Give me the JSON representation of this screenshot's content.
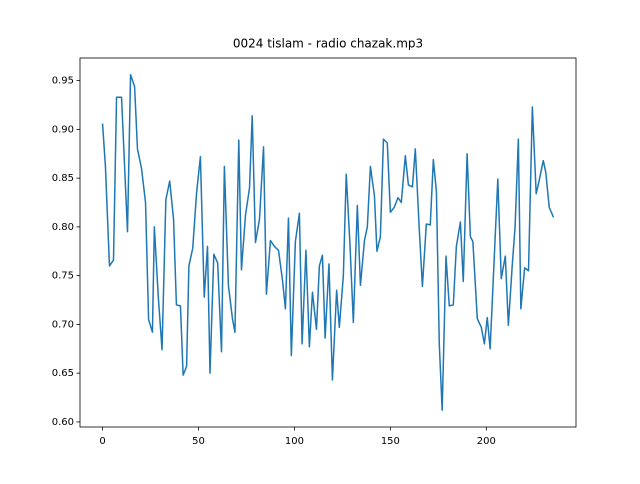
{
  "chart_data": {
    "type": "line",
    "title": "0024 tislam - radio chazak.mp3",
    "x": [
      0,
      1.5,
      3.6,
      5.7,
      7.3,
      9.9,
      13,
      14.6,
      16.7,
      18.2,
      20.3,
      22.4,
      24,
      26,
      27,
      29,
      31,
      33,
      35,
      37,
      38.5,
      40.6,
      42,
      43.8,
      45,
      47,
      49,
      51,
      53,
      54.7,
      56,
      58,
      60,
      62,
      63.5,
      65.6,
      67.7,
      69,
      71,
      72.4,
      74.5,
      76.6,
      78,
      79.7,
      81.8,
      83.9,
      85.4,
      87.5,
      89.6,
      91.7,
      93.8,
      95.3,
      96.9,
      98.4,
      100.5,
      102.6,
      104,
      106,
      107.8,
      109.4,
      111.5,
      113,
      114.6,
      116,
      118,
      119.8,
      122,
      123.4,
      125.5,
      127,
      129,
      130.7,
      132.8,
      134.4,
      136.5,
      138,
      139.6,
      141.7,
      143,
      144.8,
      146.4,
      148.4,
      150,
      152,
      154,
      155.7,
      157.8,
      159.4,
      161.5,
      163,
      165,
      166.7,
      168.75,
      170.8,
      172.4,
      174,
      175.5,
      177,
      179,
      180.7,
      182.8,
      184.4,
      186.5,
      188,
      190,
      191.7,
      193,
      195.3,
      197.4,
      199,
      200.5,
      202,
      204,
      206,
      207.8,
      209.9,
      211.5,
      213.5,
      215,
      216.7,
      218,
      220,
      222,
      224,
      226,
      227.6,
      229.7,
      231,
      232.8,
      235
    ],
    "series": [
      {
        "color": "#1f77b4",
        "values": [
          0.906,
          0.862,
          0.76,
          0.766,
          0.933,
          0.933,
          0.795,
          0.956,
          0.944,
          0.88,
          0.86,
          0.825,
          0.705,
          0.692,
          0.8,
          0.73,
          0.674,
          0.828,
          0.847,
          0.808,
          0.72,
          0.719,
          0.648,
          0.657,
          0.76,
          0.778,
          0.835,
          0.872,
          0.728,
          0.78,
          0.65,
          0.772,
          0.763,
          0.672,
          0.862,
          0.74,
          0.706,
          0.692,
          0.889,
          0.756,
          0.812,
          0.84,
          0.914,
          0.784,
          0.808,
          0.882,
          0.731,
          0.786,
          0.78,
          0.776,
          0.745,
          0.716,
          0.809,
          0.668,
          0.785,
          0.814,
          0.68,
          0.776,
          0.677,
          0.733,
          0.695,
          0.76,
          0.771,
          0.686,
          0.762,
          0.643,
          0.735,
          0.697,
          0.75,
          0.854,
          0.78,
          0.702,
          0.822,
          0.74,
          0.786,
          0.8,
          0.862,
          0.832,
          0.775,
          0.79,
          0.89,
          0.886,
          0.815,
          0.82,
          0.83,
          0.825,
          0.873,
          0.843,
          0.841,
          0.88,
          0.8,
          0.739,
          0.803,
          0.802,
          0.869,
          0.836,
          0.68,
          0.612,
          0.77,
          0.719,
          0.72,
          0.78,
          0.805,
          0.744,
          0.875,
          0.79,
          0.785,
          0.706,
          0.697,
          0.68,
          0.707,
          0.675,
          0.762,
          0.849,
          0.747,
          0.77,
          0.699,
          0.76,
          0.8,
          0.89,
          0.716,
          0.758,
          0.755,
          0.923,
          0.834,
          0.848,
          0.868,
          0.856,
          0.82,
          0.81
        ]
      }
    ],
    "xlim": [
      -11.75,
      246.75
    ],
    "ylim": [
      0.5948,
      0.9732
    ],
    "xticks": [
      0,
      50,
      100,
      150,
      200
    ],
    "yticks": [
      {
        "value": 0.6,
        "label": "0.60"
      },
      0.65,
      {
        "value": 0.7,
        "label": "0.70"
      },
      0.75,
      {
        "value": 0.8,
        "label": "0.80"
      },
      0.85,
      {
        "value": 0.9,
        "label": "0.90"
      },
      0.95
    ]
  }
}
